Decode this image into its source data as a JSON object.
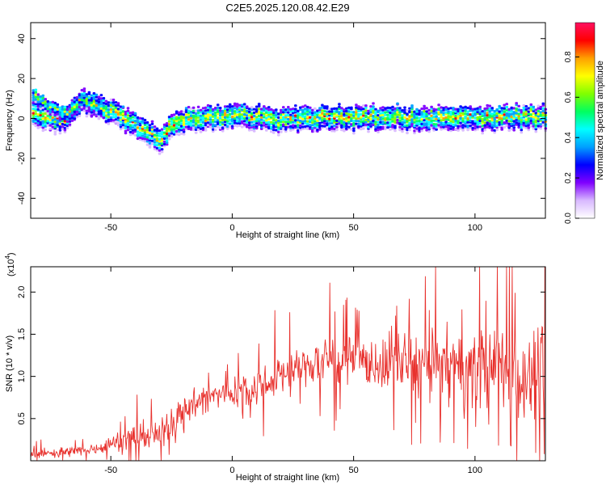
{
  "title": "C2E5.2025.120.08.42.E29",
  "colors": {
    "snr_line": "#e8312d",
    "colormap": [
      "#ffffff",
      "#d8b8ff",
      "#8000ff",
      "#0000ff",
      "#00a0ff",
      "#00ffff",
      "#00ff60",
      "#80ff00",
      "#ffff00",
      "#ffa000",
      "#ff0000",
      "#ff1060"
    ]
  },
  "chart_data": [
    {
      "type": "heatmap",
      "xlabel": "Height of straight line (km)",
      "ylabel": "Frequency (Hz)",
      "xlim": [
        -83,
        129
      ],
      "ylim": [
        -50,
        48
      ],
      "xticks": [
        -50,
        0,
        50,
        100
      ],
      "yticks": [
        -40,
        -20,
        0,
        20,
        40
      ],
      "colorbar": {
        "label": "Normalized spectral amplitude",
        "range": [
          0,
          0.97
        ],
        "ticks": [
          "0.0",
          "0.2",
          "0.4",
          "0.6",
          "0.8"
        ]
      },
      "ridge": {
        "x": [
          -83,
          -78,
          -73,
          -68,
          -63,
          -58,
          -53,
          -48,
          -43,
          -38,
          -33,
          -30,
          -25,
          -20,
          -10,
          0,
          10,
          20,
          30,
          40,
          50,
          60,
          70,
          80,
          90,
          100,
          110,
          120,
          129
        ],
        "y": [
          3,
          0,
          -1,
          1,
          9,
          7,
          5,
          3,
          -1,
          -5,
          -8,
          -11,
          -3,
          -1,
          1,
          2,
          1,
          0,
          0,
          1,
          0,
          1,
          1,
          0,
          0,
          0,
          1,
          1,
          1
        ]
      },
      "upper_branch": {
        "x": [
          -83,
          -78,
          -73,
          -68,
          -63,
          -58,
          -53
        ],
        "y": [
          13,
          8,
          5,
          3,
          10,
          8,
          5
        ]
      }
    },
    {
      "type": "line",
      "xlabel": "Height of straight line (km)",
      "ylabel": "SNR (10 * v/v)",
      "scale_label": "(x10",
      "scale_exp": "4",
      "xlim": [
        -83,
        129
      ],
      "ylim": [
        0,
        2.3
      ],
      "xticks": [
        -50,
        0,
        50,
        100
      ],
      "yticks": [
        "0.5",
        "1.0",
        "1.5",
        "2.0"
      ],
      "trend": {
        "x": [
          -83,
          -70,
          -60,
          -50,
          -40,
          -30,
          -25,
          -20,
          -10,
          0,
          10,
          20,
          30,
          40,
          50,
          60,
          70,
          80,
          90,
          100,
          110,
          120,
          129
        ],
        "y": [
          0.08,
          0.1,
          0.12,
          0.2,
          0.3,
          0.3,
          0.45,
          0.62,
          0.75,
          0.82,
          0.88,
          1.02,
          1.12,
          1.2,
          1.18,
          1.15,
          1.18,
          1.12,
          1.12,
          1.05,
          1.1,
          1.02,
          0.98
        ]
      },
      "spread": {
        "x": [
          -83,
          -50,
          -40,
          -30,
          -25,
          0,
          30,
          60,
          80,
          100,
          129
        ],
        "y": [
          0.05,
          0.1,
          0.18,
          0.15,
          0.22,
          0.2,
          0.28,
          0.35,
          0.4,
          0.55,
          0.6
        ]
      }
    }
  ]
}
